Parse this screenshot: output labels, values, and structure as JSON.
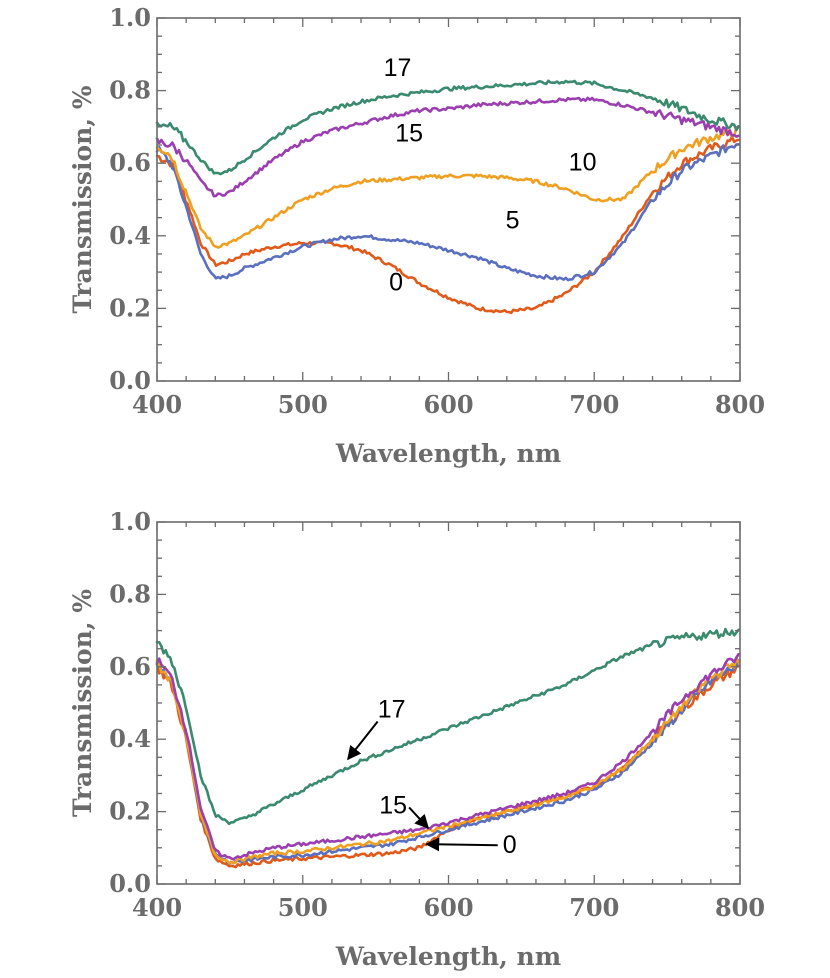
{
  "chart_data": [
    {
      "type": "line",
      "panel": "top",
      "xlabel": "Wavelength, nm",
      "ylabel": "Transmission, %",
      "xlim": [
        400,
        800
      ],
      "ylim": [
        0.0,
        1.0
      ],
      "xticks": [
        "400",
        "500",
        "600",
        "700",
        "800"
      ],
      "yticks": [
        "0.0",
        "0.2",
        "0.4",
        "0.6",
        "0.8",
        "1.0"
      ],
      "grid": false,
      "series": [
        {
          "name": "0",
          "color": "#e05a1a",
          "x": [
            400,
            410,
            420,
            430,
            440,
            450,
            460,
            480,
            500,
            520,
            540,
            560,
            580,
            600,
            620,
            640,
            660,
            680,
            700,
            720,
            740,
            760,
            780,
            800
          ],
          "y": [
            0.62,
            0.6,
            0.5,
            0.38,
            0.32,
            0.33,
            0.35,
            0.37,
            0.38,
            0.38,
            0.36,
            0.32,
            0.27,
            0.23,
            0.2,
            0.19,
            0.2,
            0.24,
            0.3,
            0.4,
            0.52,
            0.6,
            0.64,
            0.67
          ]
        },
        {
          "name": "5",
          "color": "#5a6fc0",
          "x": [
            400,
            410,
            420,
            430,
            440,
            450,
            460,
            480,
            500,
            520,
            540,
            560,
            580,
            600,
            620,
            640,
            660,
            680,
            700,
            720,
            740,
            760,
            780,
            800
          ],
          "y": [
            0.64,
            0.6,
            0.48,
            0.35,
            0.28,
            0.29,
            0.31,
            0.34,
            0.37,
            0.39,
            0.4,
            0.39,
            0.38,
            0.36,
            0.34,
            0.31,
            0.29,
            0.28,
            0.3,
            0.38,
            0.5,
            0.58,
            0.62,
            0.66
          ]
        },
        {
          "name": "10",
          "color": "#f0a020",
          "x": [
            400,
            410,
            420,
            430,
            440,
            450,
            460,
            480,
            500,
            520,
            540,
            560,
            580,
            600,
            620,
            640,
            660,
            680,
            700,
            720,
            740,
            760,
            780,
            800
          ],
          "y": [
            0.65,
            0.62,
            0.52,
            0.42,
            0.37,
            0.38,
            0.4,
            0.45,
            0.5,
            0.53,
            0.55,
            0.555,
            0.56,
            0.565,
            0.565,
            0.56,
            0.55,
            0.53,
            0.5,
            0.5,
            0.58,
            0.64,
            0.67,
            0.69
          ]
        },
        {
          "name": "15",
          "color": "#9b3fb0",
          "x": [
            400,
            410,
            420,
            430,
            440,
            450,
            460,
            480,
            500,
            520,
            540,
            560,
            580,
            600,
            620,
            640,
            660,
            680,
            700,
            720,
            740,
            760,
            780,
            800
          ],
          "y": [
            0.66,
            0.65,
            0.61,
            0.55,
            0.51,
            0.52,
            0.55,
            0.61,
            0.66,
            0.69,
            0.71,
            0.73,
            0.745,
            0.75,
            0.76,
            0.765,
            0.77,
            0.775,
            0.775,
            0.76,
            0.74,
            0.72,
            0.7,
            0.68
          ]
        },
        {
          "name": "17",
          "color": "#3a8a6e",
          "x": [
            400,
            410,
            420,
            430,
            440,
            450,
            460,
            480,
            500,
            520,
            540,
            560,
            580,
            600,
            620,
            640,
            660,
            680,
            700,
            720,
            740,
            760,
            780,
            800
          ],
          "y": [
            0.7,
            0.7,
            0.66,
            0.61,
            0.57,
            0.58,
            0.61,
            0.67,
            0.72,
            0.75,
            0.77,
            0.785,
            0.795,
            0.805,
            0.81,
            0.815,
            0.82,
            0.825,
            0.82,
            0.8,
            0.78,
            0.75,
            0.72,
            0.7
          ]
        }
      ],
      "annotations": [
        {
          "text": "17",
          "x": 565,
          "y": 0.84
        },
        {
          "text": "15",
          "x": 573,
          "y": 0.66
        },
        {
          "text": "10",
          "x": 692,
          "y": 0.58
        },
        {
          "text": "5",
          "x": 644,
          "y": 0.42
        },
        {
          "text": "0",
          "x": 564,
          "y": 0.25
        }
      ]
    },
    {
      "type": "line",
      "panel": "bottom",
      "xlabel": "Wavelength, nm",
      "ylabel": "Transmission, %",
      "xlim": [
        400,
        800
      ],
      "ylim": [
        0.0,
        1.0
      ],
      "xticks": [
        "400",
        "500",
        "600",
        "700",
        "800"
      ],
      "yticks": [
        "0.0",
        "0.2",
        "0.4",
        "0.6",
        "0.8",
        "1.0"
      ],
      "grid": false,
      "series": [
        {
          "name": "0",
          "color": "#e05a1a",
          "x": [
            400,
            410,
            420,
            430,
            440,
            450,
            460,
            480,
            500,
            520,
            540,
            560,
            580,
            600,
            620,
            640,
            660,
            680,
            700,
            720,
            740,
            760,
            780,
            800
          ],
          "y": [
            0.6,
            0.55,
            0.4,
            0.18,
            0.07,
            0.05,
            0.055,
            0.065,
            0.07,
            0.075,
            0.08,
            0.085,
            0.1,
            0.15,
            0.18,
            0.2,
            0.22,
            0.24,
            0.27,
            0.32,
            0.4,
            0.48,
            0.55,
            0.6
          ]
        },
        {
          "name": "5",
          "color": "#5a6fc0",
          "x": [
            400,
            410,
            420,
            430,
            440,
            450,
            460,
            480,
            500,
            520,
            540,
            560,
            580,
            600,
            620,
            640,
            660,
            680,
            700,
            720,
            740,
            760,
            780,
            800
          ],
          "y": [
            0.61,
            0.56,
            0.41,
            0.19,
            0.08,
            0.06,
            0.065,
            0.075,
            0.08,
            0.09,
            0.1,
            0.11,
            0.13,
            0.15,
            0.17,
            0.19,
            0.21,
            0.23,
            0.26,
            0.31,
            0.39,
            0.48,
            0.56,
            0.61
          ]
        },
        {
          "name": "10",
          "color": "#f0a020",
          "x": [
            400,
            410,
            420,
            430,
            440,
            450,
            460,
            480,
            500,
            520,
            540,
            560,
            580,
            600,
            620,
            640,
            660,
            680,
            700,
            720,
            740,
            760,
            780,
            800
          ],
          "y": [
            0.61,
            0.56,
            0.41,
            0.19,
            0.08,
            0.06,
            0.07,
            0.085,
            0.09,
            0.1,
            0.11,
            0.12,
            0.14,
            0.16,
            0.18,
            0.2,
            0.22,
            0.24,
            0.27,
            0.32,
            0.4,
            0.49,
            0.57,
            0.62
          ]
        },
        {
          "name": "15",
          "color": "#9b3fb0",
          "x": [
            400,
            410,
            420,
            430,
            440,
            450,
            460,
            480,
            500,
            520,
            540,
            560,
            580,
            600,
            620,
            640,
            660,
            680,
            700,
            720,
            740,
            760,
            780,
            800
          ],
          "y": [
            0.62,
            0.57,
            0.43,
            0.21,
            0.09,
            0.07,
            0.08,
            0.1,
            0.11,
            0.12,
            0.13,
            0.14,
            0.15,
            0.17,
            0.19,
            0.21,
            0.23,
            0.25,
            0.28,
            0.34,
            0.42,
            0.51,
            0.58,
            0.63
          ]
        },
        {
          "name": "17",
          "color": "#3a8a6e",
          "x": [
            400,
            410,
            420,
            430,
            440,
            450,
            460,
            480,
            500,
            520,
            540,
            560,
            580,
            600,
            620,
            640,
            660,
            680,
            700,
            720,
            740,
            760,
            780,
            800
          ],
          "y": [
            0.67,
            0.62,
            0.49,
            0.3,
            0.19,
            0.17,
            0.18,
            0.22,
            0.26,
            0.3,
            0.34,
            0.37,
            0.4,
            0.43,
            0.46,
            0.49,
            0.52,
            0.55,
            0.59,
            0.63,
            0.66,
            0.68,
            0.69,
            0.7
          ]
        }
      ],
      "annotations": [
        {
          "text": "17",
          "x": 561,
          "y": 0.46,
          "arrow_to": [
            531,
            0.345
          ]
        },
        {
          "text": "15",
          "x": 562,
          "y": 0.195,
          "arrow_to": [
            586,
            0.155
          ]
        },
        {
          "text": "0",
          "x": 642,
          "y": 0.085,
          "arrow_to": [
            585,
            0.11
          ]
        }
      ]
    }
  ]
}
